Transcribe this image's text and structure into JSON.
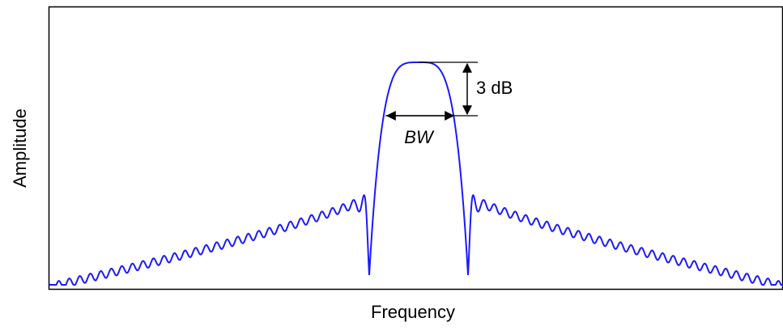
{
  "labels": {
    "y_axis": "Amplitude",
    "x_axis": "Frequency",
    "drop": "3 dB",
    "bandwidth": "BW"
  }
}
